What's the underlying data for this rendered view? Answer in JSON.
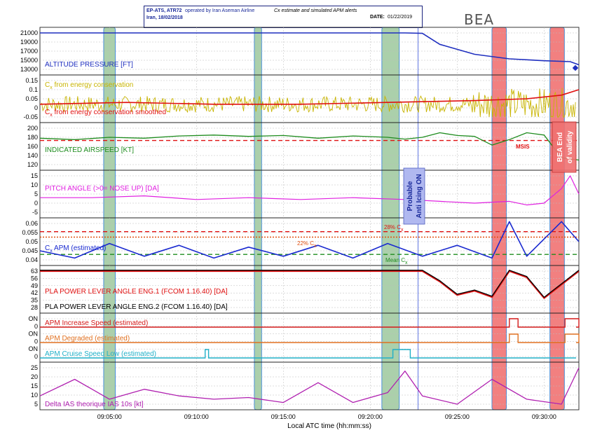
{
  "header": {
    "operator_prefix": "EP-ATS, ATR72",
    "operator_suffix": "operated by Iran Aseman Airline",
    "location_date": "Iran, 18/02/2018",
    "title": "Cx estimate and simulated APM alerts",
    "date_label": "DATE:",
    "date_value": "01/22/2019",
    "logo": "BEA"
  },
  "chart_data": {
    "type": "line",
    "xlabel": "Local ATC time (hh:mm:ss)",
    "x_ticks": [
      "09:05:00",
      "09:10:00",
      "09:15:00",
      "09:20:00",
      "09:25:00",
      "09:30:00"
    ],
    "x_range": [
      "09:01:00",
      "09:32:00"
    ],
    "green_bands": [
      [
        "09:04:40",
        "09:05:20"
      ],
      [
        "09:13:20",
        "09:13:45"
      ],
      [
        "09:20:40",
        "09:21:40"
      ]
    ],
    "red_bands": [
      [
        "09:27:00",
        "09:27:50"
      ],
      [
        "09:30:20",
        "09:31:10"
      ]
    ],
    "marker_line": "09:22:45",
    "colors": {
      "altitude": "#1f2fbf",
      "cx_raw": "#c8b400",
      "cx_smooth": "#e01010",
      "ias": "#1e8c1e",
      "pitch": "#e020e0",
      "apm": "#1a2ad0",
      "pla1": "#e01010",
      "pla2": "#000000",
      "apm_inc": "#d41a1a",
      "apm_deg": "#e07020",
      "apm_low": "#20b0c8",
      "delta_ias": "#b020b0",
      "green_band": "#8fc08f",
      "red_band": "#f06a6a"
    },
    "annotations": {
      "anti_icing": [
        "Probable",
        "Anti Icing ON"
      ],
      "end_validity": [
        "BEA End",
        "of validity"
      ],
      "msis": "MSIS",
      "cx28": "28% C",
      "cx28_sub": "x",
      "cx22": "22% C",
      "cx22_sub": "x",
      "mean_cx": "Mean C",
      "mean_cx_sub": "x"
    },
    "panels": [
      {
        "label": "ALTITUDE PRESSURE [FT]",
        "ticks": [
          "21000",
          "19000",
          "17000",
          "15000",
          "13000"
        ],
        "ylim": [
          13000,
          21000
        ],
        "series": [
          {
            "x": [
              0,
              21,
              22,
              23,
              25,
              27,
              29,
              30.5,
              31
            ],
            "y": [
              21000,
              21000,
              20900,
              18500,
              16300,
              15300,
              14900,
              14700,
              14000
            ]
          }
        ]
      },
      {
        "label": "C",
        "label_sub": "x",
        "label_rest": " from energy conservation",
        "label2": "C",
        "label2_sub": "x",
        "label2_rest": " from energy conservation smoothed",
        "ticks": [
          "0.15",
          "0.1",
          "0.05",
          "0",
          "-0.05"
        ],
        "ylim": [
          -0.05,
          0.15
        ],
        "series": [
          {
            "x": [
              0,
              5,
              10,
              15,
              20,
              25,
              28,
              30,
              31
            ],
            "y": [
              0.02,
              0.03,
              0.02,
              0.02,
              0.03,
              0.04,
              0.05,
              0.07,
              0.1
            ]
          }
        ]
      },
      {
        "label": "INDICATED AIRSPEED [KT]",
        "ticks": [
          "200",
          "180",
          "160",
          "140",
          "120"
        ],
        "ylim": [
          120,
          200
        ],
        "ref": 173,
        "series": [
          {
            "x": [
              0,
              2,
              4,
              6,
              8,
              10,
              12,
              14,
              16,
              18,
              20,
              21,
              22,
              23,
              24,
              25,
              26,
              27,
              28,
              29,
              30,
              31
            ],
            "y": [
              178,
              175,
              180,
              178,
              183,
              185,
              182,
              184,
              178,
              183,
              180,
              176,
              180,
              190,
              184,
              182,
              163,
              175,
              190,
              185,
              135,
              130
            ]
          }
        ]
      },
      {
        "label": "PITCH ANGLE (>0= NOSE UP) [DA]",
        "ticks": [
          "15",
          "10",
          "5",
          "0",
          "-5"
        ],
        "ylim": [
          -5,
          15
        ],
        "series": [
          {
            "x": [
              0,
              3,
              6,
              9,
              12,
              15,
              18,
              21,
              23,
              25,
              27,
              28,
              29,
              30,
              30.5,
              31
            ],
            "y": [
              3,
              3,
              4,
              2,
              3,
              2,
              3,
              2,
              1,
              0,
              1,
              -1,
              0,
              8,
              15,
              5
            ]
          }
        ]
      },
      {
        "label": "C",
        "label_sub": "x",
        "label_rest": " APM (estimated)",
        "ticks": [
          "0.06",
          "0.055",
          "0.05",
          "0.045",
          "0.04"
        ],
        "ylim": [
          0.04,
          0.06
        ],
        "refs": [
          0.0555,
          0.0525,
          0.043
        ],
        "series": [
          {
            "x": [
              0,
              2,
              4,
              6,
              8,
              10,
              12,
              14,
              16,
              18,
              20,
              22,
              24,
              26,
              27,
              28,
              30,
              31
            ],
            "y": [
              0.045,
              0.041,
              0.049,
              0.042,
              0.048,
              0.041,
              0.047,
              0.042,
              0.048,
              0.041,
              0.049,
              0.042,
              0.048,
              0.041,
              0.061,
              0.042,
              0.061,
              0.05
            ]
          }
        ]
      },
      {
        "label": "PLA POWER LEVER ANGLE ENG.1 (FCOM 1.16.40) [DA]",
        "label2": "PLA POWER LEVER ANGLE ENG.2 (FCOM 1.16.40) [DA]",
        "ticks": [
          "63",
          "56",
          "49",
          "42",
          "35",
          "28"
        ],
        "ylim": [
          28,
          63
        ],
        "series": [
          {
            "x": [
              0,
              22,
              23,
              24,
              25,
              26,
              27,
              28,
              29,
              30,
              31
            ],
            "y": [
              63,
              63,
              53,
              40,
              44,
              38,
              63,
              57,
              37,
              50,
              63
            ]
          }
        ]
      },
      {
        "label": "APM Increase Speed (estimated)",
        "label2": "APM Degraded (estimated)",
        "label3": "APM Cruise Speed Low (estimated)",
        "ticks": [
          "ON",
          "0",
          "ON",
          "0",
          "ON",
          "0"
        ]
      },
      {
        "label": "Delta IAS theorique IAS 10s [kt]",
        "ticks": [
          "25",
          "20",
          "15",
          "10",
          "5"
        ],
        "ylim": [
          5,
          27
        ],
        "series": [
          {
            "x": [
              0,
              2,
              4,
              6,
              8,
              10,
              12,
              14,
              16,
              18,
              20,
              21,
              22,
              24,
              26,
              28,
              30,
              31
            ],
            "y": [
              10,
              20,
              8,
              14,
              10,
              8,
              9,
              6,
              18,
              6,
              12,
              25,
              10,
              5,
              20,
              8,
              5,
              27
            ]
          }
        ]
      }
    ]
  }
}
